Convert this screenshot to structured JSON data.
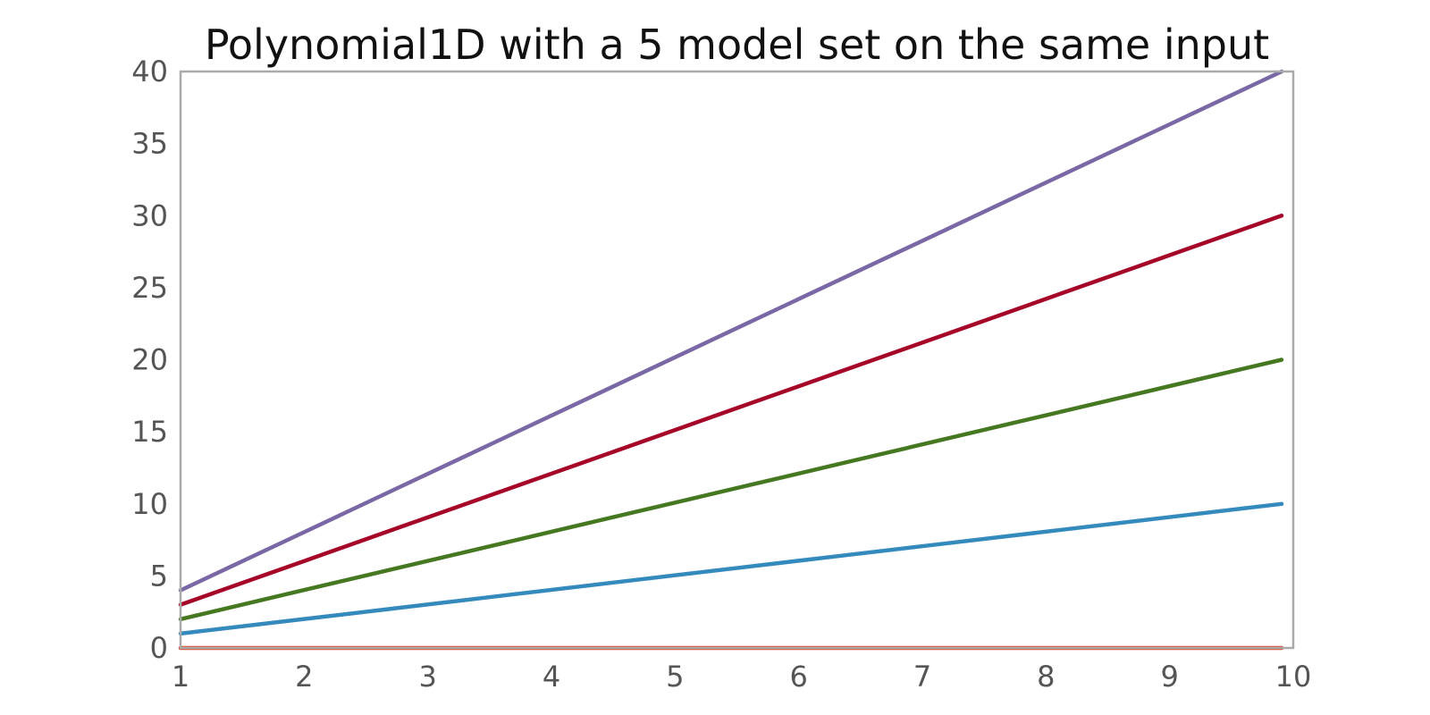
{
  "chart_data": {
    "type": "line",
    "title": "Polynomial1D with a 5 model set on the same input",
    "xlabel": "",
    "ylabel": "",
    "xlim": [
      1,
      10
    ],
    "ylim": [
      0,
      40
    ],
    "x_ticks": [
      "1",
      "2",
      "3",
      "4",
      "5",
      "6",
      "7",
      "8",
      "9",
      "10"
    ],
    "y_ticks": [
      "0",
      "5",
      "10",
      "15",
      "20",
      "25",
      "30",
      "35",
      "40"
    ],
    "grid": false,
    "x": [
      1,
      1.9,
      2.8,
      3.7,
      4.6,
      5.5,
      6.4,
      7.3,
      8.2,
      9.1,
      10
    ],
    "series": [
      {
        "color": "#E24A33",
        "values": [
          0,
          0,
          0,
          0,
          0,
          0,
          0,
          0,
          0,
          0,
          0
        ]
      },
      {
        "color": "#348ABD",
        "values": [
          1,
          1.9,
          2.8,
          3.7,
          4.6,
          5.5,
          6.4,
          7.3,
          8.2,
          9.1,
          10
        ]
      },
      {
        "color": "#467821",
        "values": [
          2,
          3.8,
          5.6,
          7.4,
          9.2,
          11,
          12.8,
          14.6,
          16.4,
          18.2,
          20
        ]
      },
      {
        "color": "#A60628",
        "values": [
          3,
          5.7,
          8.4,
          11.1,
          13.8,
          16.5,
          19.2,
          21.9,
          24.6,
          27.3,
          30
        ]
      },
      {
        "color": "#7A68A6",
        "values": [
          4,
          7.6,
          11.2,
          14.8,
          18.4,
          22,
          25.6,
          29.2,
          32.8,
          36.4,
          40
        ]
      }
    ]
  }
}
